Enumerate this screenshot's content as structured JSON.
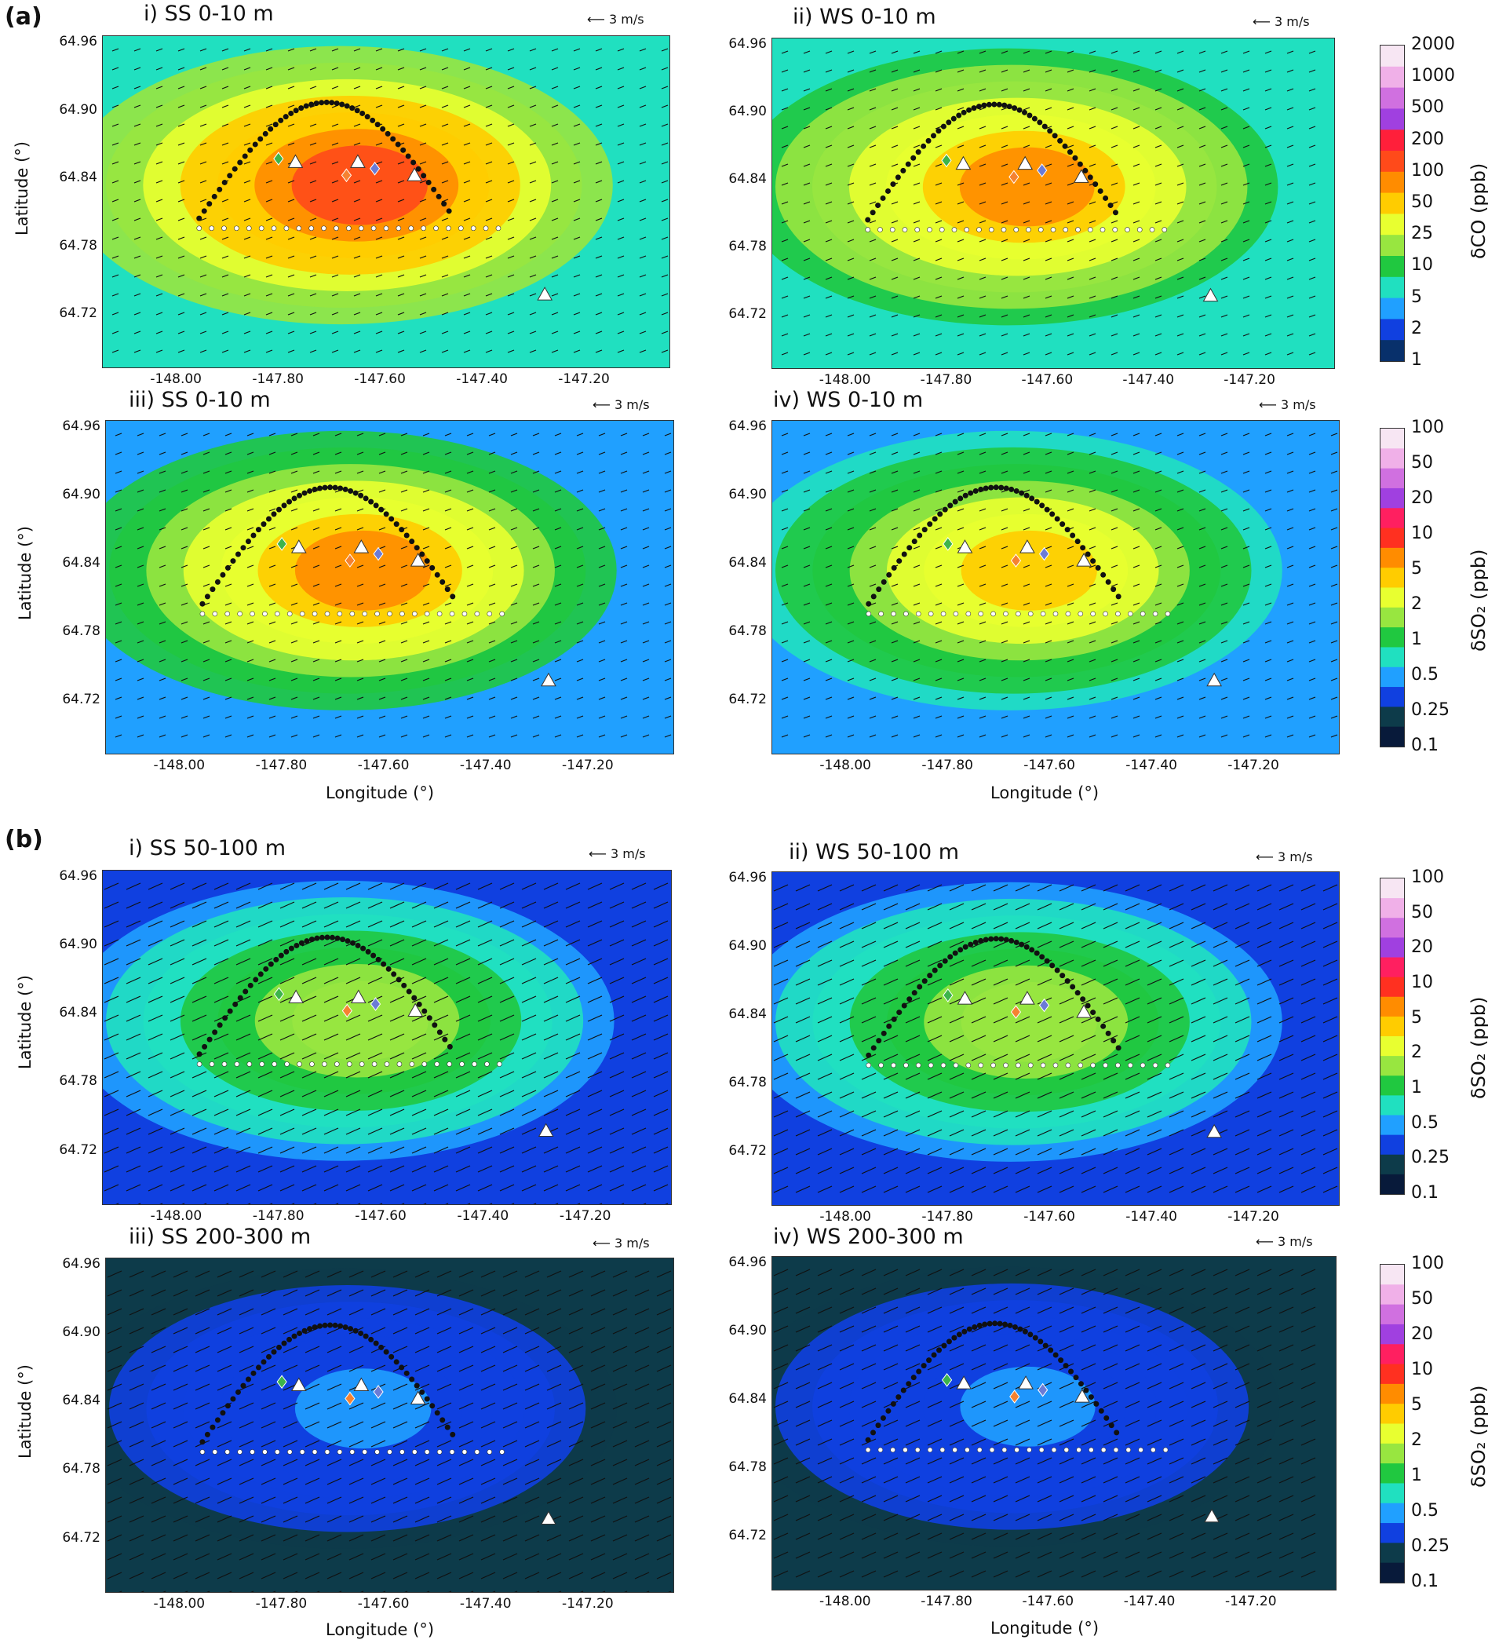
{
  "section_labels": [
    "(a)",
    "(b)"
  ],
  "scale_text": "3 m/s",
  "ylabel": "Latitude (°)",
  "xlabel": "Longitude (°)",
  "y_ticks": [
    "64.96",
    "64.90",
    "64.84",
    "64.78",
    "64.72"
  ],
  "x_ticks": [
    "-148.00",
    "-147.80",
    "-147.60",
    "-147.40",
    "-147.20"
  ],
  "colorbars": [
    {
      "label": "δCO (ppb)",
      "ticks": [
        "2000",
        "1000",
        "500",
        "200",
        "100",
        "50",
        "25",
        "10",
        "5",
        "2",
        "1"
      ]
    },
    {
      "label": "δSO₂ (ppb)",
      "ticks": [
        "100",
        "50",
        "20",
        "10",
        "5",
        "2",
        "1",
        "0.5",
        "0.25",
        "0.1"
      ]
    },
    {
      "label": "δSO₂ (ppb)",
      "ticks": [
        "100",
        "50",
        "20",
        "10",
        "5",
        "2",
        "1",
        "0.5",
        "0.25",
        "0.1"
      ]
    },
    {
      "label": "δSO₂ (ppb)",
      "ticks": [
        "100",
        "50",
        "20",
        "10",
        "5",
        "2",
        "1",
        "0.5",
        "0.25",
        "0.1"
      ]
    }
  ],
  "colors": {
    "co_scale": [
      "#f7e6f3",
      "#f0b0e8",
      "#d070e0",
      "#a040e0",
      "#ff1f3a",
      "#ff4a1a",
      "#ff8c00",
      "#ffcc00",
      "#e8ff30",
      "#98e640",
      "#20c840",
      "#20e0c0",
      "#20a0ff",
      "#1040e0",
      "#08306b"
    ],
    "so2_scale": [
      "#f7e6f3",
      "#f0b0e8",
      "#d070e0",
      "#a040e0",
      "#ff1f60",
      "#ff3020",
      "#ff8c00",
      "#ffcc00",
      "#e8ff30",
      "#98e640",
      "#20c840",
      "#20e0c0",
      "#20a0ff",
      "#1040e0",
      "#0d3b4a",
      "#081a3a"
    ]
  },
  "chart_data": [
    {
      "id": "a-i",
      "type": "heatmap",
      "title": "i)  SS 0-10 m",
      "variable": "δCO",
      "level": 0.62,
      "xlim": [
        -148.2,
        -147.1
      ],
      "ylim": [
        64.66,
        64.97
      ],
      "colorbar": 0
    },
    {
      "id": "a-ii",
      "type": "heatmap",
      "title": "ii)  WS 0-10 m",
      "variable": "δCO",
      "level": 0.55,
      "xlim": [
        -148.2,
        -147.1
      ],
      "ylim": [
        64.66,
        64.97
      ],
      "colorbar": 0
    },
    {
      "id": "a-iii",
      "type": "heatmap",
      "title": "iii)  SS 0-10 m",
      "variable": "δSO₂",
      "level": 0.58,
      "xlim": [
        -148.2,
        -147.1
      ],
      "ylim": [
        64.66,
        64.97
      ],
      "colorbar": 1
    },
    {
      "id": "a-iv",
      "type": "heatmap",
      "title": "iv)  WS 0-10 m",
      "variable": "δSO₂",
      "level": 0.52,
      "xlim": [
        -148.2,
        -147.1
      ],
      "ylim": [
        64.66,
        64.97
      ],
      "colorbar": 1
    },
    {
      "id": "b-i",
      "type": "heatmap",
      "title": "i)  SS 50-100 m",
      "variable": "δSO₂",
      "level": 0.42,
      "xlim": [
        -148.2,
        -147.1
      ],
      "ylim": [
        64.66,
        64.97
      ],
      "colorbar": 2
    },
    {
      "id": "b-ii",
      "type": "heatmap",
      "title": "ii)  WS 50-100 m",
      "variable": "δSO₂",
      "level": 0.4,
      "xlim": [
        -148.2,
        -147.1
      ],
      "ylim": [
        64.66,
        64.97
      ],
      "colorbar": 2
    },
    {
      "id": "b-iii",
      "type": "heatmap",
      "title": "iii)  SS 200-300 m",
      "variable": "δSO₂",
      "level": 0.18,
      "xlim": [
        -148.2,
        -147.1
      ],
      "ylim": [
        64.66,
        64.97
      ],
      "colorbar": 3
    },
    {
      "id": "b-iv",
      "type": "heatmap",
      "title": "iv)  WS 200-300 m",
      "variable": "δSO₂",
      "level": 0.17,
      "xlim": [
        -148.2,
        -147.1
      ],
      "ylim": [
        64.66,
        64.97
      ],
      "colorbar": 3
    }
  ]
}
